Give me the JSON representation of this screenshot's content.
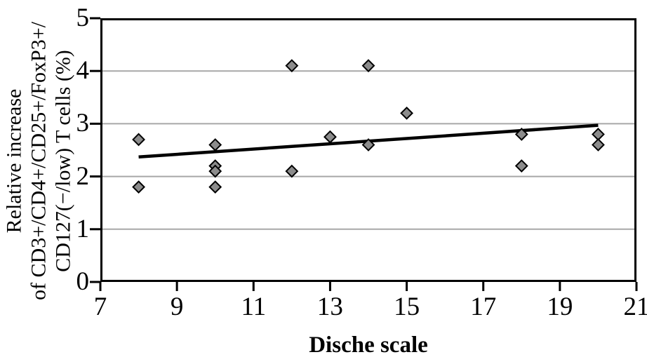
{
  "chart_data": {
    "type": "scatter",
    "title": "",
    "xlabel": "Dische scale",
    "ylabel": "Relative increase of CD3+/CD4+/CD25+/FoxP3+/ CD127(−/low) T cells (%)",
    "ylabel_lines": [
      "Relative increase",
      "of CD3+/CD4+/CD25+/FoxP3+/",
      "CD127(−/low) T cells (%)"
    ],
    "xlim": [
      7,
      21
    ],
    "ylim": [
      0,
      5
    ],
    "xticks": [
      "7",
      "9",
      "11",
      "13",
      "15",
      "17",
      "19",
      "21"
    ],
    "xtick_values": [
      7,
      9,
      11,
      13,
      15,
      17,
      19,
      21
    ],
    "yticks": [
      "0",
      "1",
      "2",
      "3",
      "4",
      "5"
    ],
    "ytick_values": [
      0,
      1,
      2,
      3,
      4,
      5
    ],
    "grid": "horizontal",
    "legend": "none",
    "points": [
      {
        "x": 8,
        "y": 2.7
      },
      {
        "x": 8,
        "y": 1.8
      },
      {
        "x": 10,
        "y": 2.6
      },
      {
        "x": 10,
        "y": 2.2
      },
      {
        "x": 10,
        "y": 2.1
      },
      {
        "x": 10,
        "y": 1.8
      },
      {
        "x": 12,
        "y": 4.1
      },
      {
        "x": 12,
        "y": 2.1
      },
      {
        "x": 13,
        "y": 2.75
      },
      {
        "x": 14,
        "y": 4.1
      },
      {
        "x": 14,
        "y": 2.6
      },
      {
        "x": 15,
        "y": 3.2
      },
      {
        "x": 18,
        "y": 2.8
      },
      {
        "x": 18,
        "y": 2.2
      },
      {
        "x": 20,
        "y": 2.8
      },
      {
        "x": 20,
        "y": 2.6
      }
    ],
    "trendline": {
      "x1": 8,
      "y1": 2.37,
      "x2": 20,
      "y2": 2.97
    },
    "marker": {
      "shape": "diamond",
      "fill": "#8c8c8c",
      "stroke": "#000000"
    },
    "colors": {
      "axis": "#000000",
      "gridline": "#a8a8a8",
      "background": "#ffffff",
      "trendline": "#000000"
    }
  }
}
